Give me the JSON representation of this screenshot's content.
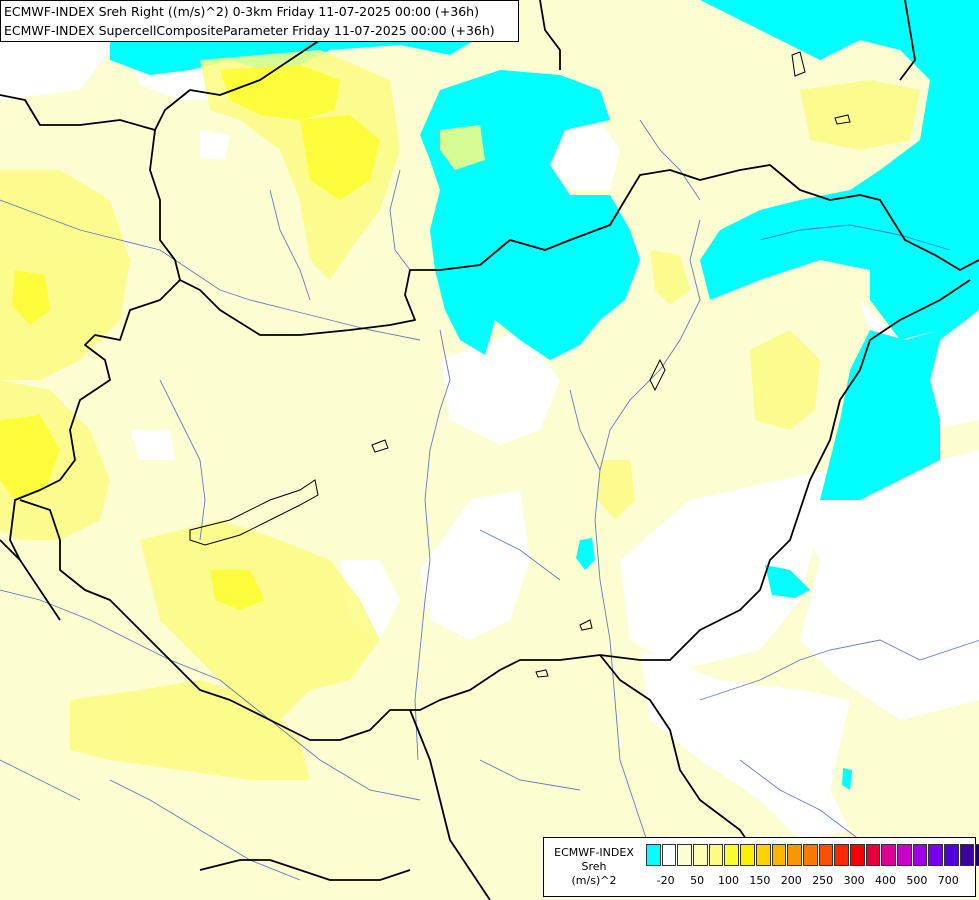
{
  "header": {
    "line1": "ECMWF-INDEX Sreh Right ((m/s)^2) 0-3km Friday 11-07-2025 00:00 (+36h)",
    "line2": "ECMWF-INDEX SupercellCompositeParameter Friday 11-07-2025 00:00 (+36h)"
  },
  "legend": {
    "title1": "ECMWF-INDEX",
    "title2": "Sreh",
    "unit": "(m/s)^2",
    "colors": [
      "#00ffff",
      "#ffffff",
      "#fdfdd2",
      "#fdfdb4",
      "#fcfc82",
      "#fcfc32",
      "#fcf000",
      "#fcd200",
      "#fcb400",
      "#fc9600",
      "#fc7800",
      "#fc5000",
      "#fc2800",
      "#fc0000",
      "#e6003c",
      "#dc0096",
      "#c800c8",
      "#a000e6",
      "#7800f0",
      "#5000dc",
      "#3c00a0",
      "#1e006e"
    ],
    "ticks": [
      "-20",
      "50",
      "100",
      "150",
      "200",
      "250",
      "300",
      "400",
      "500",
      "700"
    ]
  }
}
